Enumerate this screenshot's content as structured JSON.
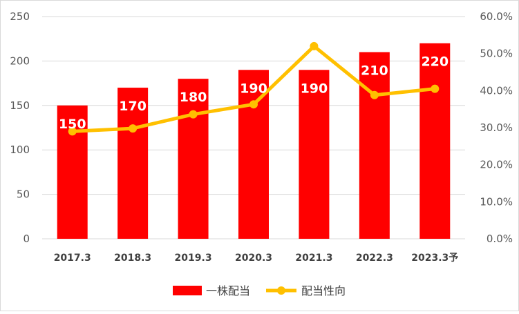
{
  "chart_data": {
    "type": "bar",
    "title": "",
    "categories": [
      "2017.3",
      "2018.3",
      "2019.3",
      "2020.3",
      "2021.3",
      "2022.3",
      "2023.3予"
    ],
    "series": [
      {
        "name": "一株配当",
        "type": "bar",
        "axis": "left",
        "color": "#ff0000",
        "values": [
          150,
          170,
          180,
          190,
          190,
          210,
          220
        ],
        "data_labels": [
          "150",
          "170",
          "180",
          "190",
          "190",
          "210",
          "220"
        ]
      },
      {
        "name": "配当性向",
        "type": "line",
        "axis": "right",
        "color": "#ffc000",
        "values": [
          29.0,
          29.8,
          33.6,
          36.3,
          52.0,
          38.8,
          40.5
        ]
      }
    ],
    "y_left": {
      "min": 0,
      "max": 250,
      "step": 50,
      "ticks": [
        "0",
        "50",
        "100",
        "150",
        "200",
        "250"
      ]
    },
    "y_right": {
      "min": 0,
      "max": 60,
      "step": 10,
      "ticks": [
        "0.0%",
        "10.0%",
        "20.0%",
        "30.0%",
        "40.0%",
        "50.0%",
        "60.0%"
      ]
    },
    "grid": true,
    "legend": "bottom-center"
  }
}
